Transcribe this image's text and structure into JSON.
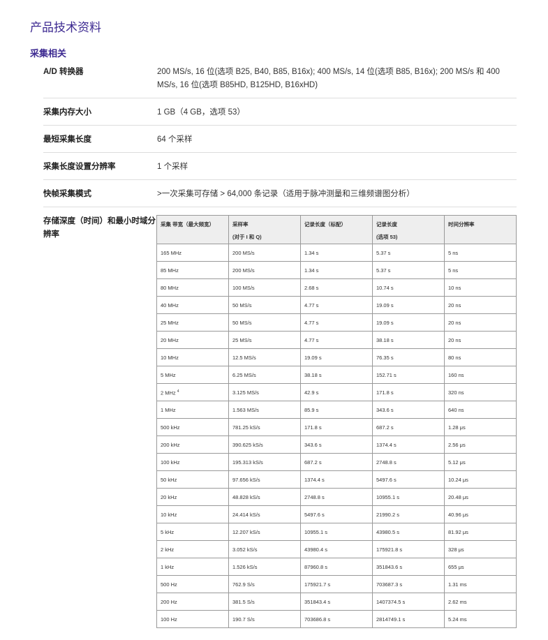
{
  "title": "产品技术资料",
  "section": "采集相关",
  "specs": [
    {
      "label": "A/D 转换器",
      "value": "200 MS/s, 16 位(选项 B25, B40, B85, B16x); 400 MS/s, 14 位(选项 B85, B16x); 200 MS/s 和 400 MS/s, 16 位(选项 B85HD, B125HD, B16xHD)"
    },
    {
      "label": "采集内存大小",
      "value": "1 GB（4 GB，选项 53）"
    },
    {
      "label": "最短采集长度",
      "value": "64 个采样"
    },
    {
      "label": "采集长度设置分辨率",
      "value": "1 个采样"
    },
    {
      "label": "快帧采集模式",
      "value": ">一次采集可存储 > 64,000 条记录（适用于脉冲测量和三维频谱图分析）"
    },
    {
      "label": "存储深度（时间）和最小时域分辨率"
    }
  ],
  "table": {
    "headers": [
      [
        "采集 带宽（最大频宽）",
        ""
      ],
      [
        "采样率",
        "(对于 I 和 Q)"
      ],
      [
        "记录长度（标配）",
        ""
      ],
      [
        "记录长度",
        "(选项 53)"
      ],
      [
        "时间分辨率",
        ""
      ]
    ],
    "rows": [
      [
        "165 MHz",
        "200 MS/s",
        "1.34 s",
        "5.37 s",
        "5 ns"
      ],
      [
        "85 MHz",
        "200 MS/s",
        "1.34 s",
        "5.37 s",
        "5 ns"
      ],
      [
        "80 MHz",
        "100 MS/s",
        "2.68 s",
        "10.74 s",
        "10 ns"
      ],
      [
        "40 MHz",
        "50 MS/s",
        "4.77 s",
        "19.09 s",
        "20 ns"
      ],
      [
        "25 MHz",
        "50 MS/s",
        "4.77 s",
        "19.09 s",
        "20 ns"
      ],
      [
        "20 MHz",
        "25 MS/s",
        "4.77 s",
        "38.18 s",
        "20 ns"
      ],
      [
        "10 MHz",
        "12.5 MS/s",
        "19.09 s",
        "76.35 s",
        "80 ns"
      ],
      [
        "5 MHz",
        "6.25 MS/s",
        "38.18 s",
        "152.71 s",
        "160 ns"
      ],
      [
        "2 MHz",
        "3.125 MS/s",
        "42.9 s",
        "171.8 s",
        "320 ns"
      ],
      [
        "1 MHz",
        "1.563 MS/s",
        "85.9 s",
        "343.6 s",
        "640 ns"
      ],
      [
        "500 kHz",
        "781.25 kS/s",
        "171.8 s",
        "687.2 s",
        "1.28 μs"
      ],
      [
        "200 kHz",
        "390.625 kS/s",
        "343.6 s",
        "1374.4 s",
        "2.56 μs"
      ],
      [
        "100 kHz",
        "195.313 kS/s",
        "687.2 s",
        "2748.8 s",
        "5.12 μs"
      ],
      [
        "50 kHz",
        "97.656 kS/s",
        "1374.4 s",
        "5497.6 s",
        "10.24 μs"
      ],
      [
        "20 kHz",
        "48.828 kS/s",
        "2748.8 s",
        "10955.1 s",
        "20.48 μs"
      ],
      [
        "10 kHz",
        "24.414 kS/s",
        "5497.6 s",
        "21990.2 s",
        "40.96 μs"
      ],
      [
        "5 kHz",
        "12.207 kS/s",
        "10955.1 s",
        "43980.5 s",
        "81.92 μs"
      ],
      [
        "2 kHz",
        "3.052 kS/s",
        "43980.4 s",
        "175921.8 s",
        "328 μs"
      ],
      [
        "1 kHz",
        "1.526 kS/s",
        "87960.8 s",
        "351843.6 s",
        "655 μs"
      ],
      [
        "500 Hz",
        "762.9 S/s",
        "175921.7 s",
        "703687.3 s",
        "1.31 ms"
      ],
      [
        "200 Hz",
        "381.5 S/s",
        "351843.4 s",
        "1407374.5 s",
        "2.62 ms"
      ],
      [
        "100 Hz",
        "190.7 S/s",
        "703686.8 s",
        "2814749.1 s",
        "5.24 ms"
      ]
    ],
    "footnotes": {
      "8": "4"
    }
  }
}
